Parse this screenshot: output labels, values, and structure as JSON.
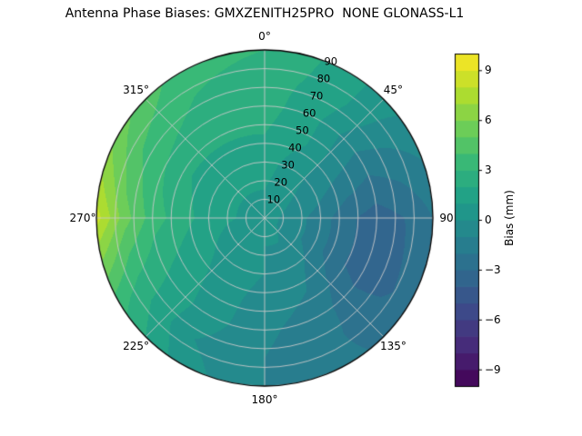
{
  "title": "Antenna Phase Biases: GMXZENITH25PRO  NONE GLONASS-L1",
  "chart_data": {
    "type": "heatmap",
    "projection": "polar",
    "title": "Antenna Phase Biases: GMXZENITH25PRO  NONE GLONASS-L1",
    "angular_ticks": [
      "0°",
      "45°",
      "90",
      "135°",
      "180°",
      "225°",
      "270°",
      "315°"
    ],
    "angular_tick_degrees": [
      0,
      45,
      90,
      135,
      180,
      225,
      270,
      315
    ],
    "radial_ticks": [
      "10",
      "20",
      "30",
      "40",
      "50",
      "60",
      "70",
      "80",
      "90"
    ],
    "radial_tick_values": [
      10,
      20,
      30,
      40,
      50,
      60,
      70,
      80,
      90
    ],
    "radial_range": [
      0,
      90
    ],
    "radial_label_angle_deg": 22.5,
    "grid_color": "#c9c9c9",
    "spine_color": "#000000",
    "colorbar": {
      "label": "Bias (mm)",
      "tick_labels": [
        "−9",
        "−6",
        "−3",
        "0",
        "3",
        "6",
        "9"
      ],
      "tick_values": [
        -9,
        -6,
        -3,
        0,
        3,
        6,
        9
      ],
      "vmin": -10,
      "vmax": 10,
      "level_step": 1,
      "colormap": "viridis"
    },
    "colormap_stops": [
      "#440154",
      "#482878",
      "#3e4989",
      "#31688e",
      "#26828e",
      "#1f9e89",
      "#35b779",
      "#6ece58",
      "#b5de2b",
      "#fde725"
    ],
    "grid": {
      "azimuth_deg": [
        0,
        30,
        60,
        90,
        120,
        150,
        180,
        210,
        240,
        270,
        300,
        330,
        360
      ],
      "zenith_deg": [
        0,
        15,
        30,
        45,
        60,
        75,
        90
      ],
      "bias_mm": [
        [
          0.5,
          0.5,
          0.5,
          0.5,
          0.5,
          0.5,
          0.5,
          0.5,
          0.5,
          0.5,
          0.5,
          0.5,
          0.5
        ],
        [
          1.0,
          0.5,
          0.0,
          -0.5,
          -0.5,
          0.0,
          0.0,
          0.5,
          0.5,
          1.0,
          1.0,
          1.0,
          1.0
        ],
        [
          1.5,
          0.5,
          -0.5,
          -1.5,
          -1.5,
          -0.5,
          0.0,
          0.5,
          1.0,
          1.5,
          1.5,
          1.5,
          1.5
        ],
        [
          2.0,
          1.0,
          -1.0,
          -2.8,
          -2.8,
          -1.0,
          -0.5,
          0.5,
          1.5,
          2.5,
          2.0,
          2.0,
          2.0
        ],
        [
          2.5,
          1.0,
          -1.5,
          -3.5,
          -3.5,
          -1.5,
          -0.8,
          0.5,
          2.0,
          3.5,
          3.0,
          2.5,
          2.5
        ],
        [
          2.5,
          1.5,
          -1.0,
          -3.0,
          -3.2,
          -1.8,
          -1.0,
          0.0,
          2.5,
          5.5,
          4.0,
          3.0,
          2.5
        ],
        [
          3.0,
          1.5,
          -0.5,
          -2.0,
          -2.5,
          -1.8,
          -1.0,
          0.5,
          3.5,
          8.5,
          5.5,
          3.5,
          3.0
        ]
      ]
    }
  }
}
